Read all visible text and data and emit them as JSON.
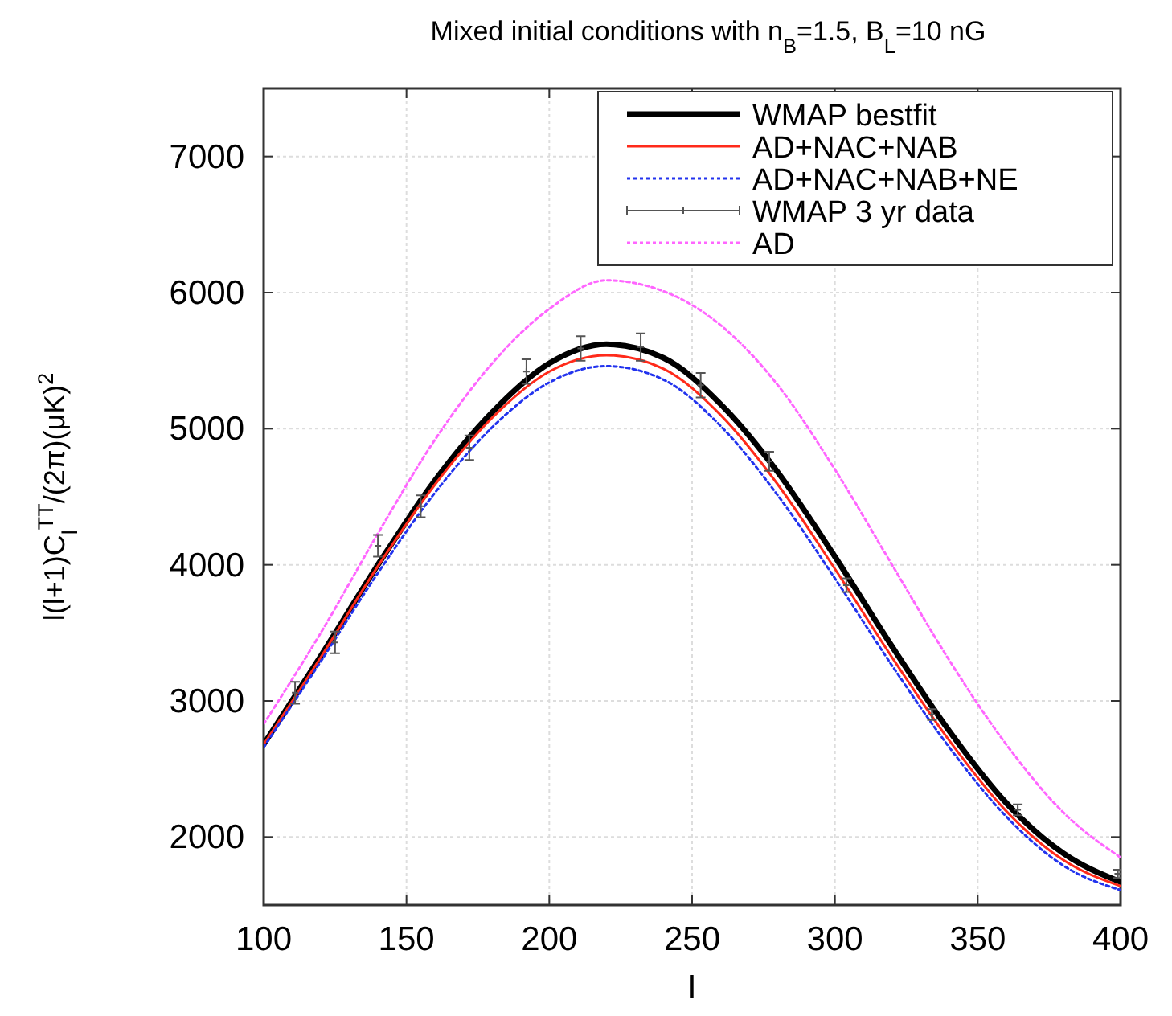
{
  "chart_data": {
    "type": "line",
    "title": "Mixed initial conditions with n$_{B}$=1.5, B$_{L}$=10 nG",
    "xlabel": "l",
    "ylabel": "l(l+1)C$_{l}$$^{TT}$/(2π)(μK)$^{2}$",
    "xlim": [
      100,
      400
    ],
    "xticks": [
      100,
      150,
      200,
      250,
      300,
      350,
      400
    ],
    "ylim": [
      1500,
      7500
    ],
    "yticks": [
      2000,
      3000,
      4000,
      5000,
      6000,
      7000
    ],
    "grid": true,
    "legend": "top right",
    "series": [
      {
        "name": "WMAP bestfit",
        "color": "#000000",
        "line_style": "solid",
        "x": [
          100,
          120,
          140,
          160,
          180,
          200,
          220,
          240,
          260,
          280,
          300,
          320,
          340,
          360,
          380,
          400
        ],
        "values": [
          2680,
          3330,
          4000,
          4620,
          5120,
          5480,
          5620,
          5520,
          5180,
          4680,
          4060,
          3400,
          2780,
          2250,
          1880,
          1670
        ]
      },
      {
        "name": "AD+NAC+NAB",
        "color": "#ff2a1a",
        "line_style": "solid",
        "x": [
          100,
          120,
          140,
          160,
          180,
          200,
          220,
          240,
          260,
          280,
          300,
          320,
          340,
          360,
          380,
          400
        ],
        "values": [
          2680,
          3320,
          3990,
          4590,
          5080,
          5420,
          5540,
          5440,
          5100,
          4590,
          3970,
          3320,
          2710,
          2190,
          1830,
          1640
        ]
      },
      {
        "name": "AD+NAC+NAB+NE",
        "color": "#2233ee",
        "line_style": "dotted",
        "x": [
          100,
          120,
          140,
          160,
          180,
          200,
          220,
          240,
          260,
          280,
          300,
          320,
          340,
          360,
          380,
          400
        ],
        "values": [
          2660,
          3290,
          3940,
          4530,
          5010,
          5340,
          5460,
          5360,
          5020,
          4510,
          3900,
          3260,
          2660,
          2150,
          1790,
          1610
        ]
      },
      {
        "name": "WMAP 3 yr data",
        "type": "scatter",
        "color": "#555555",
        "marker": "cross",
        "x": [
          111,
          125,
          140,
          155,
          172,
          192,
          211,
          232,
          253,
          277,
          304,
          334,
          364,
          399
        ],
        "values": [
          3060,
          3430,
          4140,
          4430,
          4860,
          5420,
          5590,
          5600,
          5320,
          4760,
          3850,
          2900,
          2200,
          1730
        ],
        "errors": [
          80,
          80,
          80,
          80,
          90,
          90,
          90,
          100,
          90,
          70,
          50,
          40,
          40,
          30
        ]
      },
      {
        "name": "AD",
        "color": "#ff66ff",
        "line_style": "dotted",
        "x": [
          100,
          120,
          140,
          160,
          180,
          200,
          220,
          240,
          260,
          280,
          300,
          320,
          340,
          360,
          380,
          400
        ],
        "values": [
          2830,
          3500,
          4230,
          4920,
          5480,
          5880,
          6090,
          6010,
          5760,
          5320,
          4700,
          4000,
          3300,
          2680,
          2180,
          1850
        ]
      }
    ]
  }
}
